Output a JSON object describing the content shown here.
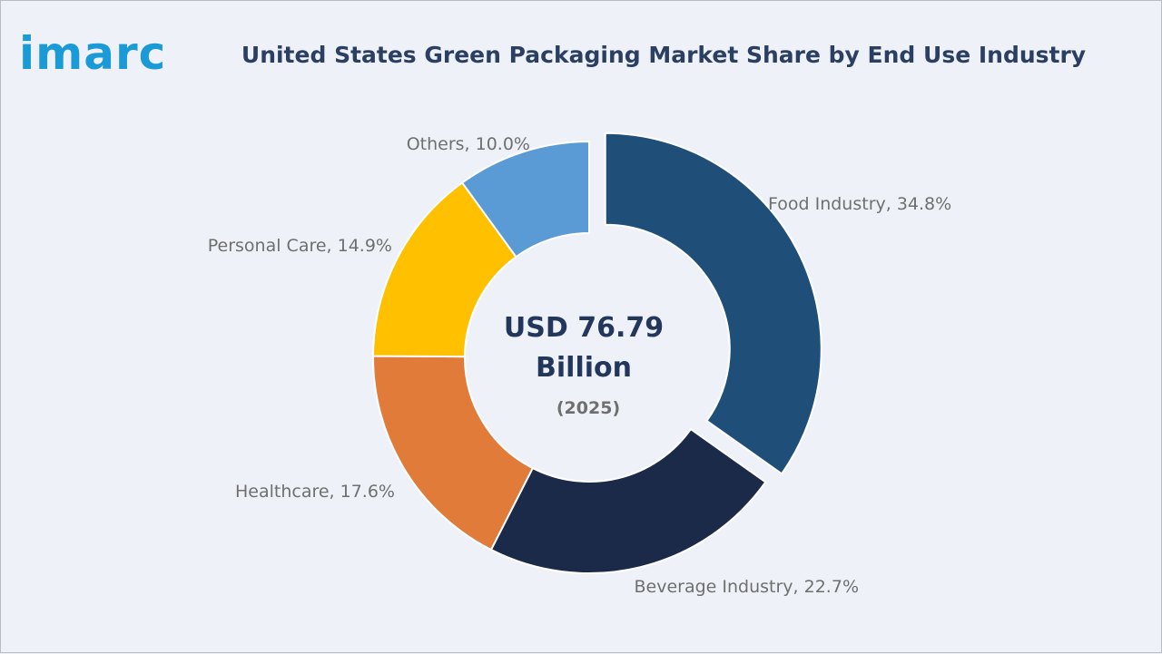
{
  "brand": {
    "logo_text": "imarc"
  },
  "chart_data": {
    "type": "pie",
    "title": "United States Green Packaging Market Share by End Use Industry",
    "categories": [
      "Food Industry",
      "Beverage Industry",
      "Healthcare",
      "Personal Care",
      "Others"
    ],
    "values": [
      34.8,
      22.7,
      17.6,
      14.9,
      10.0
    ],
    "unit": "%",
    "labels": [
      "Food Industry, 34.8%",
      "Beverage Industry, 22.7%",
      "Healthcare, 17.6%",
      "Personal Care, 14.9%",
      "Others, 10.0%"
    ],
    "colors": [
      "#1f4e79",
      "#1c2a4a",
      "#e07b39",
      "#ffc000",
      "#5b9bd5"
    ],
    "donut": true,
    "exploded": "Food Industry",
    "center": {
      "line1": "USD 76.79",
      "line2": "Billion",
      "line3": "(2025)"
    }
  }
}
